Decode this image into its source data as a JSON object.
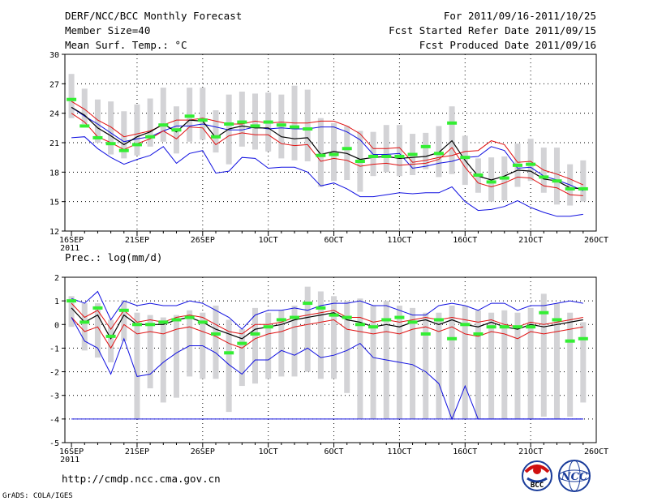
{
  "header": {
    "line1_left": "DERF/NCC/BCC Monthly Forecast",
    "line2_left": "Member Size=40",
    "line3_left": "Mean Surf. Temp.: °C",
    "line1_right": "For 2011/09/16-2011/10/25",
    "line2_right": "Fcst Started Refer Date 2011/09/15",
    "line3_right": "Fcst Produced Date 2011/09/16"
  },
  "footer": {
    "url": "http://cmdp.ncc.cma.gov.cn",
    "grads": "GrADS: COLA/IGES",
    "logo1_text": "BCC",
    "logo2_text": "NCC"
  },
  "colors": {
    "box": "#d3d3d6",
    "ensemble_max_min": "#1010e0",
    "percentile": "#e01010",
    "mean": "#000000",
    "marker": "#33ee33"
  },
  "chart_data": [
    {
      "type": "line",
      "title": "Mean Surf. Temp.: °C",
      "x": [
        1,
        2,
        3,
        4,
        5,
        6,
        7,
        8,
        9,
        10,
        11,
        12,
        13,
        14,
        15,
        16,
        17,
        18,
        19,
        20,
        21,
        22,
        23,
        24,
        25,
        26,
        27,
        28,
        29,
        30,
        31,
        32,
        33,
        34,
        35,
        36,
        37,
        38,
        39,
        40
      ],
      "xtick_labels": [
        "16SEP",
        "21SEP",
        "26SEP",
        "1OCT",
        "6OCT",
        "11OCT",
        "16OCT",
        "21OCT",
        "26OCT"
      ],
      "xtick_positions": [
        1,
        6,
        11,
        16,
        21,
        26,
        31,
        36,
        41
      ],
      "xtick_sublabel": "2011",
      "xlim": [
        0.5,
        41
      ],
      "ylim": [
        12,
        30
      ],
      "yticks": [
        12,
        15,
        18,
        21,
        24,
        27,
        30
      ],
      "grid": true,
      "series": [
        {
          "name": "max",
          "values": [
            24.6,
            23.7,
            22.9,
            22.0,
            21.1,
            21.4,
            21.6,
            22.2,
            22.7,
            22.7,
            22.9,
            22.6,
            22.3,
            22.3,
            22.6,
            22.4,
            22.5,
            22.4,
            22.4,
            22.6,
            22.6,
            22.1,
            21.3,
            19.8,
            19.8,
            19.9,
            18.4,
            18.6,
            18.9,
            19.1,
            19.5,
            19.6,
            20.6,
            20.2,
            18.4,
            18.5,
            17.6,
            17.2,
            16.7,
            16.1
          ]
        },
        {
          "name": "upper",
          "values": [
            25.2,
            24.4,
            23.3,
            22.6,
            21.6,
            21.9,
            22.2,
            22.8,
            23.3,
            23.3,
            23.5,
            23.2,
            22.9,
            22.9,
            23.2,
            23.0,
            23.1,
            23.0,
            23.0,
            23.2,
            23.2,
            22.7,
            21.9,
            20.4,
            20.4,
            20.5,
            19.0,
            19.2,
            19.5,
            19.7,
            20.1,
            20.2,
            21.2,
            20.8,
            19.0,
            19.1,
            18.2,
            17.8,
            17.3,
            16.7
          ]
        },
        {
          "name": "mean",
          "values": [
            24.6,
            23.8,
            22.5,
            21.7,
            20.8,
            21.6,
            22.1,
            22.9,
            22.1,
            23.3,
            23.2,
            21.5,
            22.4,
            22.7,
            22.5,
            22.5,
            21.6,
            21.4,
            21.5,
            19.8,
            20.1,
            19.9,
            19.3,
            19.5,
            19.6,
            19.4,
            19.5,
            19.6,
            20.0,
            21.2,
            19.2,
            17.6,
            17.2,
            17.6,
            18.2,
            18.1,
            17.3,
            17.1,
            16.4,
            16.3
          ]
        },
        {
          "name": "lower",
          "values": [
            24.0,
            23.1,
            21.6,
            21.0,
            20.3,
            20.9,
            21.4,
            22.2,
            21.4,
            22.6,
            22.5,
            20.8,
            21.7,
            22.0,
            21.8,
            21.8,
            20.9,
            20.7,
            20.8,
            19.1,
            19.4,
            19.2,
            18.6,
            18.8,
            18.9,
            18.7,
            18.8,
            18.9,
            19.3,
            20.5,
            18.5,
            16.9,
            16.5,
            16.9,
            17.5,
            17.4,
            16.6,
            16.4,
            15.7,
            15.6
          ]
        },
        {
          "name": "min",
          "values": [
            21.5,
            21.6,
            20.4,
            19.5,
            18.8,
            19.3,
            19.7,
            20.6,
            18.9,
            19.9,
            20.2,
            17.9,
            18.1,
            19.5,
            19.4,
            18.4,
            18.5,
            18.5,
            18.0,
            16.6,
            16.9,
            16.3,
            15.5,
            15.5,
            15.7,
            15.9,
            15.8,
            15.9,
            15.9,
            16.5,
            15.0,
            14.1,
            14.2,
            14.5,
            15.1,
            14.4,
            13.9,
            13.5,
            13.5,
            13.7
          ]
        },
        {
          "name": "obs",
          "values": [
            25.4,
            22.7,
            21.5,
            20.9,
            20.2,
            20.8,
            21.6,
            22.8,
            22.3,
            23.7,
            23.3,
            21.6,
            22.9,
            23.1,
            22.7,
            23.1,
            22.8,
            22.6,
            22.4,
            19.7,
            19.8,
            20.4,
            19.1,
            19.6,
            19.6,
            19.6,
            19.8,
            20.6,
            19.9,
            23.0,
            19.5,
            17.7,
            17.0,
            17.4,
            18.7,
            18.8,
            17.5,
            17.1,
            16.3,
            16.3
          ]
        }
      ],
      "boxes": {
        "upper": [
          28.0,
          26.5,
          25.4,
          25.2,
          24.2,
          24.9,
          25.5,
          26.6,
          24.7,
          26.6,
          26.6,
          24.3,
          25.9,
          26.2,
          26.0,
          26.1,
          25.9,
          26.8,
          26.4,
          23.5,
          23.0,
          22.7,
          22.2,
          22.1,
          22.8,
          22.8,
          21.9,
          22.0,
          22.7,
          24.7,
          21.7,
          19.4,
          19.5,
          19.6,
          20.9,
          21.4,
          20.5,
          20.5,
          18.8,
          19.2
        ],
        "lower": [
          23.5,
          22.9,
          21.0,
          19.8,
          19.4,
          19.7,
          20.6,
          21.1,
          19.9,
          21.1,
          21.3,
          20.0,
          18.8,
          20.6,
          20.3,
          20.1,
          19.4,
          19.2,
          19.1,
          16.5,
          17.1,
          17.2,
          16.0,
          17.6,
          18.0,
          17.6,
          17.7,
          18.3,
          17.5,
          17.8,
          16.7,
          15.9,
          15.0,
          15.1,
          16.5,
          17.1,
          15.9,
          14.7,
          14.6,
          15.0
        ]
      }
    },
    {
      "type": "line",
      "title": "Prec.: log(mm/d)",
      "x": [
        1,
        2,
        3,
        4,
        5,
        6,
        7,
        8,
        9,
        10,
        11,
        12,
        13,
        14,
        15,
        16,
        17,
        18,
        19,
        20,
        21,
        22,
        23,
        24,
        25,
        26,
        27,
        28,
        29,
        30,
        31,
        32,
        33,
        34,
        35,
        36,
        37,
        38,
        39,
        40
      ],
      "xtick_labels": [
        "16SEP",
        "21SEP",
        "26SEP",
        "1OCT",
        "6OCT",
        "11OCT",
        "16OCT",
        "21OCT",
        "26OCT"
      ],
      "xtick_positions": [
        1,
        6,
        11,
        16,
        21,
        26,
        31,
        36,
        41
      ],
      "xtick_sublabel": "2011",
      "xlim": [
        0.5,
        41
      ],
      "ylim": [
        -5,
        2
      ],
      "yticks": [
        -5,
        -4,
        -3,
        -2,
        -1,
        0,
        1,
        2
      ],
      "grid": true,
      "series": [
        {
          "name": "max",
          "values": [
            1.1,
            0.9,
            1.4,
            0.2,
            1.0,
            0.8,
            0.9,
            0.8,
            0.8,
            1.0,
            0.9,
            0.6,
            0.3,
            -0.2,
            0.4,
            0.6,
            0.6,
            0.7,
            0.6,
            0.8,
            0.9,
            0.9,
            1.0,
            0.8,
            0.8,
            0.6,
            0.4,
            0.4,
            0.8,
            0.9,
            0.8,
            0.6,
            0.9,
            0.9,
            0.6,
            0.8,
            0.8,
            0.9,
            1.0,
            0.9
          ]
        },
        {
          "name": "upper",
          "values": [
            0.9,
            0.3,
            0.6,
            -0.2,
            0.6,
            0.1,
            0.2,
            0.1,
            0.3,
            0.4,
            0.3,
            0.0,
            -0.3,
            -0.4,
            0.0,
            0.0,
            0.1,
            0.3,
            0.4,
            0.5,
            0.6,
            0.3,
            0.3,
            0.1,
            0.2,
            0.1,
            0.2,
            0.3,
            0.2,
            0.3,
            0.2,
            0.1,
            0.2,
            0.0,
            -0.1,
            0.1,
            0.0,
            0.1,
            0.2,
            0.3
          ]
        },
        {
          "name": "mean",
          "values": [
            0.7,
            0.1,
            0.4,
            -0.6,
            0.4,
            0.0,
            0.0,
            0.0,
            0.2,
            0.3,
            0.1,
            -0.2,
            -0.4,
            -0.6,
            -0.2,
            -0.1,
            0.0,
            0.2,
            0.3,
            0.4,
            0.5,
            0.2,
            0.1,
            -0.1,
            0.0,
            -0.1,
            0.1,
            0.2,
            0.0,
            0.2,
            0.0,
            -0.1,
            0.1,
            -0.1,
            -0.2,
            0.0,
            -0.1,
            0.0,
            0.1,
            0.2
          ]
        },
        {
          "name": "lower",
          "values": [
            0.3,
            -0.3,
            -0.1,
            -1.0,
            0.0,
            -0.4,
            -0.3,
            -0.4,
            -0.2,
            -0.1,
            -0.3,
            -0.5,
            -0.8,
            -1.0,
            -0.6,
            -0.4,
            -0.3,
            -0.1,
            0.0,
            0.1,
            0.2,
            -0.2,
            -0.3,
            -0.4,
            -0.3,
            -0.4,
            -0.2,
            -0.1,
            -0.3,
            -0.1,
            -0.4,
            -0.5,
            -0.3,
            -0.4,
            -0.6,
            -0.3,
            -0.4,
            -0.3,
            -0.2,
            -0.1
          ]
        },
        {
          "name": "min",
          "values": [
            0.3,
            -0.7,
            -1.0,
            -2.1,
            -0.6,
            -2.2,
            -2.1,
            -1.6,
            -1.2,
            -0.9,
            -0.9,
            -1.2,
            -1.7,
            -2.1,
            -1.5,
            -1.5,
            -1.1,
            -1.3,
            -1.0,
            -1.4,
            -1.3,
            -1.1,
            -0.8,
            -1.4,
            -1.5,
            -1.6,
            -1.7,
            -2.0,
            -2.5,
            -4.0,
            -2.6,
            -4.0,
            -4.0,
            -4.0,
            -4.0,
            -4.0,
            -4.0,
            -4.0,
            -4.0,
            -4.0
          ]
        },
        {
          "name": "obs",
          "values": [
            1.0,
            0.1,
            0.7,
            -0.5,
            0.6,
            0.0,
            0.0,
            0.1,
            0.2,
            0.3,
            0.1,
            -0.4,
            -1.2,
            -0.8,
            -0.4,
            -0.1,
            0.2,
            0.3,
            0.9,
            0.7,
            0.4,
            0.3,
            0.0,
            -0.1,
            0.2,
            0.3,
            0.1,
            -0.4,
            0.2,
            -0.6,
            0.0,
            -0.4,
            -0.1,
            -0.1,
            -0.1,
            -0.1,
            0.5,
            0.2,
            -0.7,
            -0.6
          ]
        },
        {
          "name": "floor",
          "values": [
            -4,
            -4,
            -4,
            -4,
            -4,
            -4,
            -4,
            -4,
            -4,
            -4,
            -4,
            -4,
            -4,
            -4,
            -4,
            -4,
            -4,
            -4,
            -4,
            -4,
            -4,
            -4,
            -4,
            -4,
            -4,
            -4,
            -4,
            -4,
            -4,
            -4,
            -4,
            -4,
            -4,
            -4,
            -4,
            -4,
            -4,
            -4,
            -4,
            -4
          ]
        }
      ],
      "boxes": {
        "upper": [
          1.2,
          0.9,
          0.9,
          0.2,
          1.0,
          0.5,
          0.4,
          0.3,
          0.4,
          0.6,
          0.5,
          0.8,
          0.2,
          -0.2,
          0.7,
          0.5,
          0.6,
          0.8,
          1.6,
          1.4,
          1.2,
          1.0,
          1.1,
          0.8,
          1.0,
          0.8,
          0.7,
          0.5,
          0.5,
          0.8,
          0.8,
          0.6,
          0.5,
          0.6,
          0.5,
          0.7,
          1.3,
          0.9,
          0.5,
          0.1
        ],
        "lower": [
          -0.1,
          -1.1,
          -1.4,
          -1.6,
          -0.7,
          -4.0,
          -2.7,
          -3.3,
          -3.1,
          -2.2,
          -2.3,
          -2.3,
          -3.7,
          -2.6,
          -2.5,
          -2.3,
          -2.2,
          -2.2,
          -2.0,
          -2.3,
          -2.3,
          -2.9,
          -4.0,
          -4.0,
          -4.0,
          -4.0,
          -4.0,
          -4.0,
          -4.0,
          -4.0,
          -4.0,
          -4.0,
          -4.0,
          -4.0,
          -4.0,
          -4.0,
          -3.9,
          -4.0,
          -3.9,
          -3.3
        ]
      }
    }
  ]
}
